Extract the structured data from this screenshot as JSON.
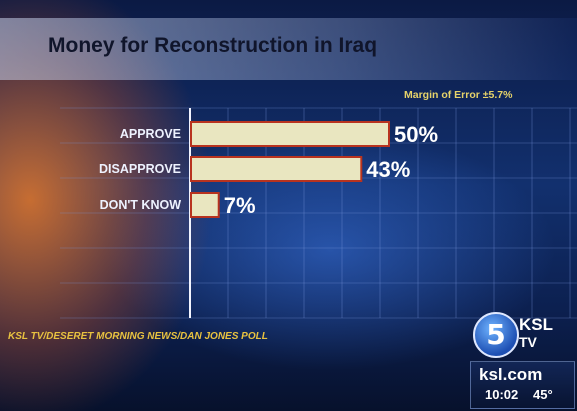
{
  "chart_data": {
    "type": "bar",
    "orientation": "horizontal",
    "title": "Money for Reconstruction in Iraq",
    "annotation": "Margin of Error ±5.7%",
    "categories": [
      "APPROVE",
      "DISAPPROVE",
      "DON'T KNOW"
    ],
    "values": [
      50,
      43,
      7
    ],
    "value_labels": [
      "50%",
      "43%",
      "7%"
    ],
    "xlim": [
      0,
      100
    ],
    "grid": true,
    "bar_color": "#e9e6c0"
  },
  "credit": "KSL TV/DESERET MORNING NEWS/DAN JONES POLL",
  "logo": {
    "number": "5",
    "line1": "KSL",
    "line2": "TV"
  },
  "bug": {
    "site": "ksl.com",
    "time": "10:02",
    "temp": "45°"
  }
}
